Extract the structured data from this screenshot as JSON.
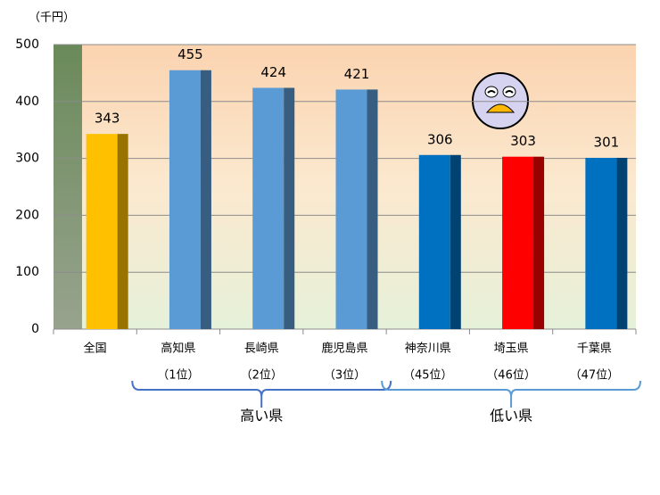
{
  "chart_data": {
    "type": "bar",
    "y_unit_label": "（千円）",
    "categories": [
      "全国",
      "高知県",
      "長崎県",
      "鹿児島県",
      "神奈川県",
      "埼玉県",
      "千葉県"
    ],
    "ranks": [
      null,
      "（1位）",
      "（2位）",
      "（3位）",
      "（45位）",
      "（46位）",
      "（47位）"
    ],
    "values": [
      343,
      455,
      424,
      421,
      306,
      303,
      301
    ],
    "colors": [
      "#ffc000",
      "#5b9bd5",
      "#5b9bd5",
      "#5b9bd5",
      "#0070c0",
      "#ff0000",
      "#0070c0"
    ],
    "group_labels": [
      "高い県",
      "低い県"
    ],
    "ylim": [
      0,
      500
    ],
    "yticks": [
      0,
      100,
      200,
      300,
      400,
      500
    ],
    "grid": true
  }
}
